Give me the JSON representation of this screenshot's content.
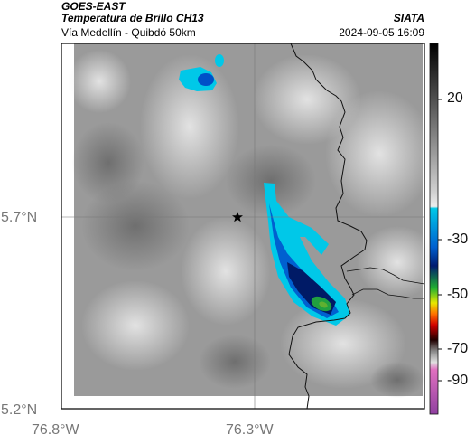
{
  "header": {
    "satellite": "GOES-EAST",
    "product": "Temperatura de Brillo CH13",
    "route": "Vía Medellín - Quibdó 50km",
    "source": "SIATA",
    "datetime": "2024-09-05 16:09"
  },
  "axes": {
    "lat_labels": [
      "5.7°N",
      "5.2°N"
    ],
    "lon_labels": [
      "76.8°W",
      "76.3°W"
    ]
  },
  "colorbar": {
    "tick_labels": [
      "20",
      "-30",
      "-50",
      "-70",
      "-90"
    ],
    "colors": {
      "warm_top": "#111111",
      "gray_mid": "#9a9a9a",
      "gray_light": "#dddddd",
      "cyan": "#00c8e8",
      "blue": "#0050c8",
      "navy": "#001a66",
      "green": "#20b030",
      "yellow": "#e8e800",
      "orange": "#ff7000",
      "red": "#d00000",
      "dark": "#200000",
      "pink": "#e070c0",
      "magenta": "#c050b0"
    }
  },
  "map": {
    "marker_icon": "star-icon"
  }
}
